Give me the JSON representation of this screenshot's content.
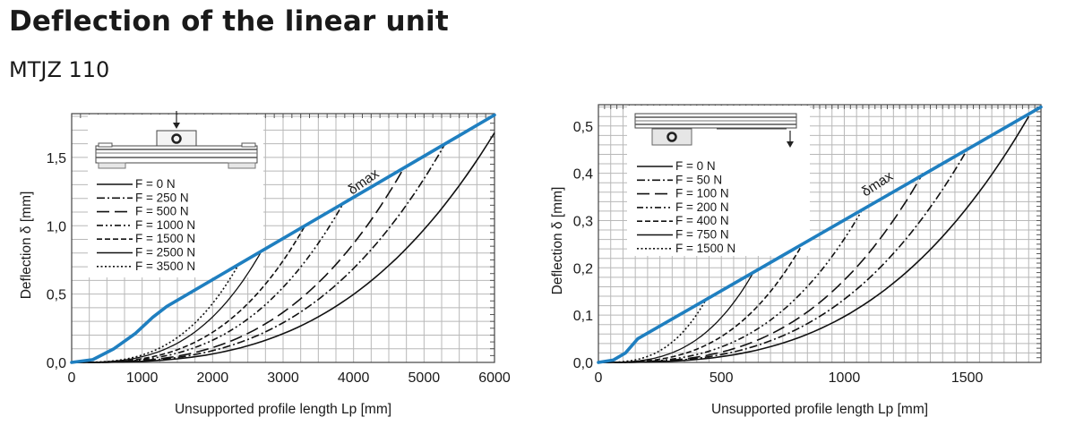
{
  "header": {
    "title": "Deflection of the linear unit",
    "subtitle": "MTJZ 110"
  },
  "colors": {
    "delta_max": "#1f7fc0",
    "curves": "#111111",
    "grid": "#b8b8b8"
  },
  "chart_data": [
    {
      "type": "line",
      "title": "Deflection of the linear unit – MTJZ 110 (load on carriage)",
      "xlabel": "Unsupported profile length Lp [mm]",
      "ylabel": "Deflection δ [mm]",
      "xlim": [
        0,
        6000
      ],
      "ylim": [
        0,
        1.82
      ],
      "xticks": [
        0,
        1000,
        2000,
        3000,
        4000,
        5000,
        6000
      ],
      "xtick_labels": [
        "0",
        "1000",
        "2000",
        "3000",
        "4000",
        "5000",
        "6000"
      ],
      "yticks": [
        0,
        0.5,
        1.0,
        1.5
      ],
      "ytick_labels": [
        "0,0",
        "0,5",
        "1,0",
        "1,5"
      ],
      "grid": true,
      "legend_position": "upper-left",
      "annotation": "δmax",
      "series": [
        {
          "name": "F = 0 N",
          "dash": "solid",
          "x_end": 6000,
          "y_end": 1.68
        },
        {
          "name": "F = 250 N",
          "dash": "dashdot",
          "x_end": 5300,
          "y_end": 1.6
        },
        {
          "name": "F = 500 N",
          "dash": "longdash",
          "x_end": 4700,
          "y_end": 1.41
        },
        {
          "name": "F = 1000 N",
          "dash": "dashdotdot",
          "x_end": 3850,
          "y_end": 1.16
        },
        {
          "name": "F = 1500 N",
          "dash": "dash",
          "x_end": 3300,
          "y_end": 0.99
        },
        {
          "name": "F = 2500 N",
          "dash": "solid-fine",
          "x_end": 2700,
          "y_end": 0.82
        },
        {
          "name": "F = 3500 N",
          "dash": "dot",
          "x_end": 2350,
          "y_end": 0.7
        }
      ],
      "delta_max": {
        "name": "δmax",
        "points": [
          [
            0,
            0
          ],
          [
            300,
            0.02
          ],
          [
            600,
            0.1
          ],
          [
            900,
            0.21
          ],
          [
            1150,
            0.33
          ],
          [
            1350,
            0.41
          ],
          [
            6000,
            1.81
          ]
        ]
      }
    },
    {
      "type": "line",
      "title": "Deflection of the linear unit – MTJZ 110 (load on profile end)",
      "xlabel": "Unsupported profile length Lp [mm]",
      "ylabel": "Deflection δ [mm]",
      "xlim": [
        0,
        1800
      ],
      "ylim": [
        0,
        0.545
      ],
      "xticks": [
        0,
        500,
        1000,
        1500
      ],
      "xtick_labels": [
        "0",
        "500",
        "1000",
        "1500"
      ],
      "yticks": [
        0,
        0.1,
        0.2,
        0.3,
        0.4,
        0.5
      ],
      "ytick_labels": [
        "0,0",
        "0,1",
        "0,2",
        "0,3",
        "0,4",
        "0,5"
      ],
      "grid": true,
      "legend_position": "upper-left",
      "annotation": "δmax",
      "series": [
        {
          "name": "F = 0 N",
          "dash": "solid",
          "x_end": 1750,
          "y_end": 0.52
        },
        {
          "name": "F = 50 N",
          "dash": "dashdot",
          "x_end": 1500,
          "y_end": 0.45
        },
        {
          "name": "F = 100 N",
          "dash": "longdash",
          "x_end": 1320,
          "y_end": 0.4
        },
        {
          "name": "F = 200 N",
          "dash": "dashdotdot",
          "x_end": 1070,
          "y_end": 0.32
        },
        {
          "name": "F = 400 N",
          "dash": "dash",
          "x_end": 830,
          "y_end": 0.25
        },
        {
          "name": "F = 750 N",
          "dash": "solid-fine",
          "x_end": 630,
          "y_end": 0.19
        },
        {
          "name": "F = 1500 N",
          "dash": "dot",
          "x_end": 440,
          "y_end": 0.135
        }
      ],
      "delta_max": {
        "name": "δmax",
        "points": [
          [
            0,
            0
          ],
          [
            60,
            0.005
          ],
          [
            110,
            0.02
          ],
          [
            160,
            0.05
          ],
          [
            1800,
            0.54
          ]
        ]
      }
    }
  ]
}
